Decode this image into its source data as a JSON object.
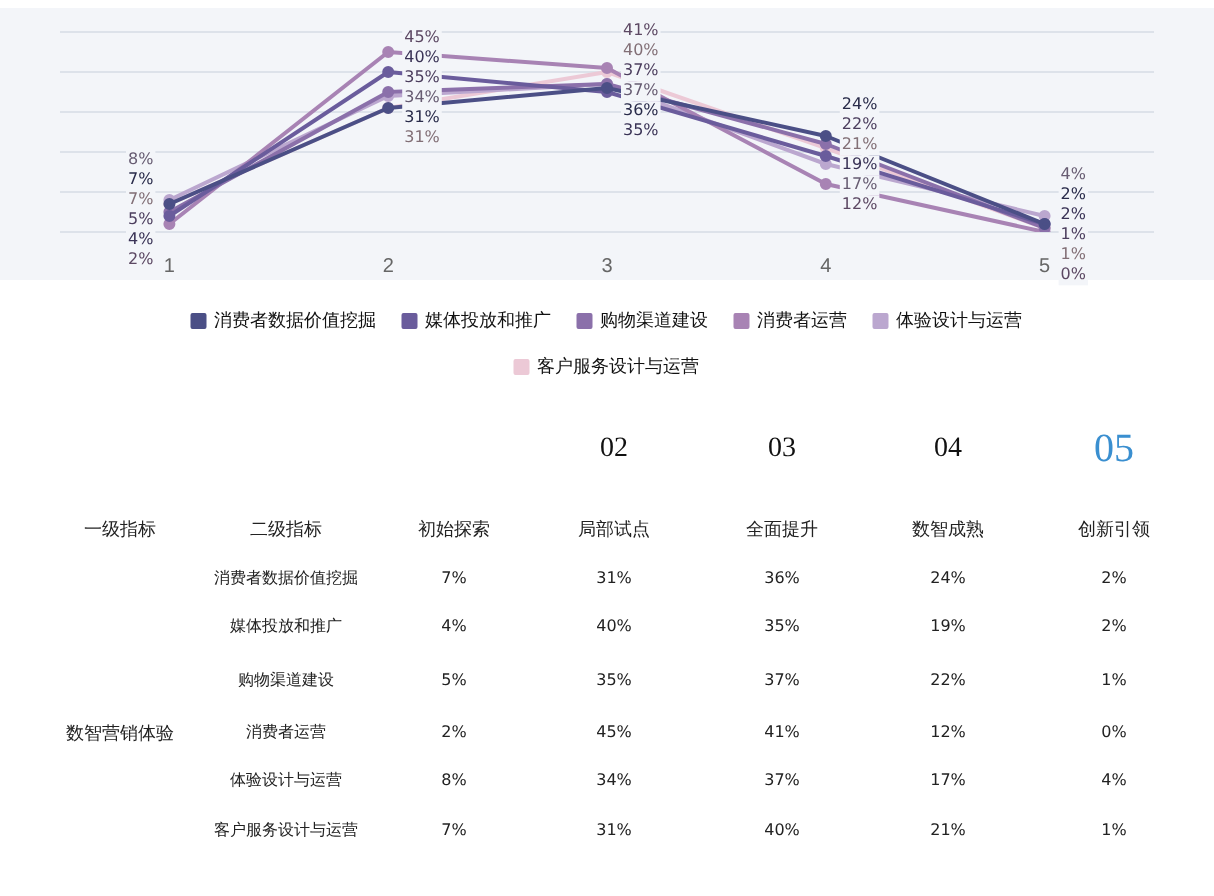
{
  "chart_data": {
    "type": "line",
    "categories": [
      "1",
      "2",
      "3",
      "4",
      "5"
    ],
    "series": [
      {
        "name": "消费者数据价值挖掘",
        "color": "#4b4f86",
        "values": [
          7,
          31,
          36,
          24,
          2
        ],
        "value_labels": [
          "7%",
          "31%",
          "36%",
          "24%",
          "2%"
        ]
      },
      {
        "name": "媒体投放和推广",
        "color": "#6a5c9c",
        "values": [
          4,
          40,
          35,
          19,
          2
        ],
        "value_labels": [
          "4%",
          "40%",
          "35%",
          "19%",
          "2%"
        ]
      },
      {
        "name": "购物渠道建设",
        "color": "#8b70aa",
        "values": [
          5,
          35,
          37,
          22,
          1
        ],
        "value_labels": [
          "5%",
          "35%",
          "37%",
          "22%",
          "1%"
        ]
      },
      {
        "name": "消费者运营",
        "color": "#a883b4",
        "values": [
          2,
          45,
          41,
          12,
          0
        ],
        "value_labels": [
          "2%",
          "45%",
          "41%",
          "12%",
          "0%"
        ]
      },
      {
        "name": "体验设计与运营",
        "color": "#bba7cf",
        "values": [
          8,
          34,
          37,
          17,
          4
        ],
        "value_labels": [
          "8%",
          "34%",
          "37%",
          "17%",
          "4%"
        ]
      },
      {
        "name": "客户服务设计与运营",
        "color": "#ecc9d6",
        "values": [
          7,
          31,
          40,
          21,
          1
        ],
        "value_labels": [
          "7%",
          "31%",
          "40%",
          "21%",
          "1%"
        ]
      }
    ],
    "ylim": [
      0,
      50
    ],
    "yticks": [
      {
        "value": 0,
        "label": null
      },
      {
        "value": 10,
        "label": null
      },
      {
        "value": 20,
        "label": null
      },
      {
        "value": 30,
        "label": null
      },
      {
        "value": 40,
        "label": null
      },
      {
        "value": 50,
        "label": null
      }
    ],
    "tick_labels": "x",
    "grid": "y",
    "legend": "bottom",
    "marker": "circle",
    "line_style": "solid",
    "annotations": [
      "02",
      "03",
      "04",
      "05",
      "一级指标",
      "二级指标",
      "初始探索",
      "局部试点",
      "全面提升",
      "数智成熟",
      "创新引领",
      "数智营销体验"
    ]
  }
}
